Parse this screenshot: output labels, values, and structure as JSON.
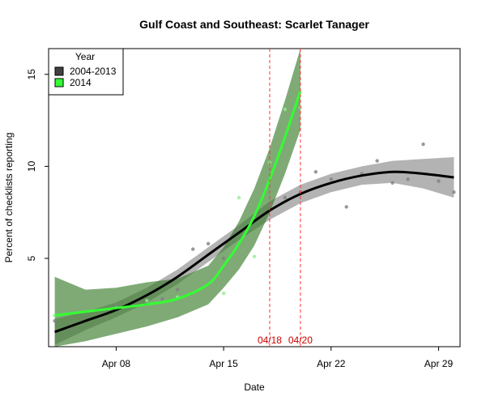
{
  "chart_data": {
    "type": "line",
    "title": "Gulf Coast and Southeast: Scarlet Tanager",
    "xlabel": "Date",
    "ylabel": "Percent of checklists reporting",
    "xlim": [
      3.6,
      30.4
    ],
    "ylim": [
      0.2,
      16.4
    ],
    "x_ticks": [
      {
        "value": 8,
        "label": "Apr 08"
      },
      {
        "value": 15,
        "label": "Apr 15"
      },
      {
        "value": 22,
        "label": "Apr 22"
      },
      {
        "value": 29,
        "label": "Apr 29"
      }
    ],
    "y_ticks": [
      {
        "value": 5,
        "label": "5"
      },
      {
        "value": 10,
        "label": "10"
      },
      {
        "value": 15,
        "label": "15"
      }
    ],
    "legend": {
      "title": "Year",
      "placement": "top-left",
      "entries": [
        {
          "label": "2004-2013",
          "color": "#404040"
        },
        {
          "label": "2014",
          "color": "#33ff33"
        }
      ]
    },
    "reference_lines": [
      {
        "x": 18,
        "label": "04/18",
        "color": "#ff3333"
      },
      {
        "x": 20,
        "label": "04/20",
        "color": "#ff3333"
      }
    ],
    "series": [
      {
        "name": "2004-2013",
        "color": "#000000",
        "band_color": "#808080",
        "x": [
          4,
          6,
          8,
          10,
          12,
          14,
          16,
          18,
          20,
          22,
          24,
          26,
          28,
          30
        ],
        "fit": [
          1.0,
          1.6,
          2.2,
          3.0,
          4.0,
          5.2,
          6.4,
          7.6,
          8.5,
          9.1,
          9.5,
          9.7,
          9.6,
          9.4
        ],
        "lower": [
          0.3,
          1.1,
          1.8,
          2.6,
          3.6,
          4.8,
          6.0,
          7.1,
          8.0,
          8.6,
          9.0,
          9.1,
          8.8,
          8.3
        ],
        "upper": [
          1.7,
          2.1,
          2.6,
          3.4,
          4.4,
          5.6,
          6.8,
          8.1,
          9.0,
          9.6,
          10.0,
          10.3,
          10.4,
          10.5
        ],
        "points": [
          [
            4,
            1.6
          ],
          [
            5,
            1.2
          ],
          [
            7,
            1.8
          ],
          [
            8,
            2.5
          ],
          [
            10,
            2.6
          ],
          [
            11,
            2.8
          ],
          [
            12,
            3.3
          ],
          [
            13,
            5.5
          ],
          [
            14,
            5.8
          ],
          [
            15,
            5.0
          ],
          [
            16,
            6.6
          ],
          [
            17,
            7.2
          ],
          [
            18,
            7.9
          ],
          [
            19,
            8.3
          ],
          [
            20,
            8.6
          ],
          [
            21,
            9.7
          ],
          [
            22,
            9.3
          ],
          [
            23,
            7.8
          ],
          [
            24,
            9.6
          ],
          [
            25,
            10.3
          ],
          [
            26,
            9.1
          ],
          [
            27,
            9.3
          ],
          [
            28,
            11.2
          ],
          [
            29,
            9.2
          ],
          [
            30,
            8.6
          ]
        ]
      },
      {
        "name": "2014",
        "color": "#33ff33",
        "band_color": "#3a7d2c",
        "x": [
          4,
          6,
          8,
          10,
          12,
          14,
          15,
          16,
          17,
          18,
          19,
          20
        ],
        "fit": [
          1.9,
          2.1,
          2.3,
          2.5,
          2.8,
          3.6,
          4.6,
          5.8,
          7.3,
          9.3,
          11.6,
          14.1
        ],
        "lower": [
          0.2,
          0.5,
          0.9,
          1.3,
          1.8,
          2.5,
          3.4,
          4.4,
          5.7,
          7.5,
          9.6,
          12.0
        ],
        "upper": [
          4.0,
          3.3,
          3.4,
          3.7,
          3.9,
          4.6,
          5.6,
          7.0,
          8.8,
          11.0,
          13.6,
          16.4
        ],
        "points": [
          [
            4,
            1.9
          ],
          [
            8,
            2.3
          ],
          [
            10,
            2.7
          ],
          [
            12,
            2.9
          ],
          [
            15,
            3.1
          ],
          [
            16,
            8.3
          ],
          [
            17,
            5.1
          ],
          [
            18,
            10.2
          ],
          [
            19,
            13.1
          ],
          [
            20,
            13.2
          ]
        ]
      }
    ]
  }
}
